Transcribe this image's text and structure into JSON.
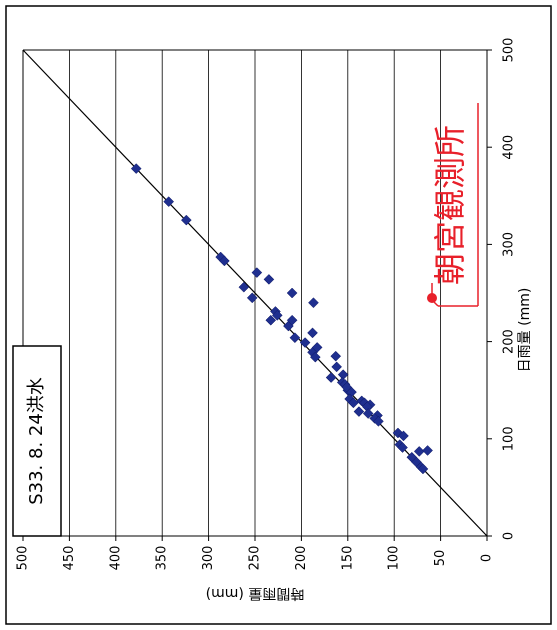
{
  "chart_data": {
    "type": "scatter",
    "title": "",
    "xlabel": "日雨量 (mm)",
    "ylabel": "時間雨量 (mm)",
    "x_ticks": [
      0,
      100,
      200,
      300,
      400,
      500
    ],
    "y_ticks": [
      0,
      50,
      100,
      150,
      200,
      250,
      300,
      350,
      400,
      450,
      500
    ],
    "xlim": [
      0,
      500
    ],
    "ylim": [
      0,
      500
    ],
    "grid": "horizontal",
    "annotation_box": "S33. 8. 24洪水",
    "station_label": "朝宮観測所",
    "reference_line": [
      [
        0,
        0
      ],
      [
        500,
        500
      ]
    ],
    "series": [
      {
        "marker_color": "#1f2f8f",
        "points": [
          [
            378,
            378
          ],
          [
            344,
            343
          ],
          [
            325,
            324
          ],
          [
            287,
            287
          ],
          [
            283,
            283
          ],
          [
            256,
            262
          ],
          [
            271,
            248
          ],
          [
            264,
            235
          ],
          [
            245,
            253
          ],
          [
            222,
            233
          ],
          [
            231,
            228
          ],
          [
            227,
            226
          ],
          [
            216,
            214
          ],
          [
            250,
            210
          ],
          [
            222,
            210
          ],
          [
            204,
            207
          ],
          [
            240,
            187
          ],
          [
            199,
            196
          ],
          [
            209,
            188
          ],
          [
            189,
            188
          ],
          [
            194,
            183
          ],
          [
            184,
            185
          ],
          [
            174,
            162
          ],
          [
            163,
            168
          ],
          [
            185,
            163
          ],
          [
            166,
            155
          ],
          [
            150,
            150
          ],
          [
            158,
            156
          ],
          [
            156,
            153
          ],
          [
            153,
            151
          ],
          [
            148,
            146
          ],
          [
            141,
            148
          ],
          [
            137,
            144
          ],
          [
            139,
            135
          ],
          [
            137,
            132
          ],
          [
            135,
            126
          ],
          [
            133,
            129
          ],
          [
            128,
            138
          ],
          [
            126,
            128
          ],
          [
            124,
            118
          ],
          [
            121,
            121
          ],
          [
            118,
            117
          ],
          [
            106,
            96
          ],
          [
            103,
            90
          ],
          [
            94,
            94
          ],
          [
            91,
            91
          ],
          [
            87,
            73
          ],
          [
            81,
            81
          ],
          [
            76,
            76
          ],
          [
            71,
            71
          ],
          [
            88,
            64
          ],
          [
            69,
            69
          ]
        ]
      }
    ]
  }
}
